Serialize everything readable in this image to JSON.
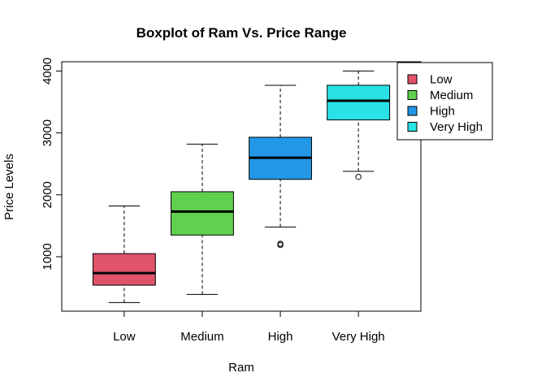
{
  "chart_data": {
    "type": "boxplot",
    "title": "Boxplot of Ram Vs. Price Range",
    "xlabel": "Ram",
    "ylabel": "Price Levels",
    "categories": [
      "Low",
      "Medium",
      "High",
      "Very High"
    ],
    "ylim": [
      120,
      4150
    ],
    "yticks": [
      1000,
      2000,
      3000,
      4000
    ],
    "grid": false,
    "legend_position": "top-right",
    "boxes": [
      {
        "name": "Low",
        "color": "#DF536B",
        "whisker_low": 260,
        "q1": 540,
        "median": 735,
        "q3": 1050,
        "whisker_high": 1820,
        "outliers": []
      },
      {
        "name": "Medium",
        "color": "#61D04F",
        "whisker_low": 390,
        "q1": 1350,
        "median": 1730,
        "q3": 2050,
        "whisker_high": 2820,
        "outliers": []
      },
      {
        "name": "High",
        "color": "#2297E6",
        "whisker_low": 1480,
        "q1": 2250,
        "median": 2600,
        "q3": 2930,
        "whisker_high": 3770,
        "outliers": [
          1190,
          1210
        ]
      },
      {
        "name": "Very High",
        "color": "#28E2E5",
        "whisker_low": 2380,
        "q1": 3210,
        "median": 3520,
        "q3": 3770,
        "whisker_high": 4000,
        "outliers": [
          2290
        ]
      }
    ],
    "legend": [
      {
        "label": "Low",
        "color": "#DF536B"
      },
      {
        "label": "Medium",
        "color": "#61D04F"
      },
      {
        "label": "High",
        "color": "#2297E6"
      },
      {
        "label": "Very High",
        "color": "#28E2E5"
      }
    ]
  }
}
